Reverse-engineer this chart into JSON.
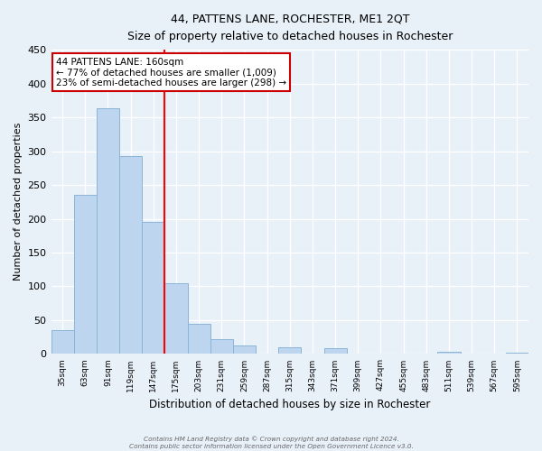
{
  "title": "44, PATTENS LANE, ROCHESTER, ME1 2QT",
  "subtitle": "Size of property relative to detached houses in Rochester",
  "xlabel": "Distribution of detached houses by size in Rochester",
  "ylabel": "Number of detached properties",
  "bar_color": "#bdd5ee",
  "bar_edge_color": "#8ab4d8",
  "background_color": "#e8f0f8",
  "grid_color": "#ffffff",
  "categories": [
    "35sqm",
    "63sqm",
    "91sqm",
    "119sqm",
    "147sqm",
    "175sqm",
    "203sqm",
    "231sqm",
    "259sqm",
    "287sqm",
    "315sqm",
    "343sqm",
    "371sqm",
    "399sqm",
    "427sqm",
    "455sqm",
    "483sqm",
    "511sqm",
    "539sqm",
    "567sqm",
    "595sqm"
  ],
  "values": [
    35,
    235,
    363,
    293,
    195,
    104,
    44,
    22,
    13,
    0,
    10,
    0,
    9,
    0,
    0,
    0,
    0,
    3,
    0,
    0,
    2
  ],
  "ylim": [
    0,
    450
  ],
  "yticks": [
    0,
    50,
    100,
    150,
    200,
    250,
    300,
    350,
    400,
    450
  ],
  "property_line_x": 4.5,
  "annotation_title": "44 PATTENS LANE: 160sqm",
  "annotation_line1": "← 77% of detached houses are smaller (1,009)",
  "annotation_line2": "23% of semi-detached houses are larger (298) →",
  "annotation_box_color": "#ffffff",
  "annotation_box_edge_color": "#cc0000",
  "footer_line1": "Contains HM Land Registry data © Crown copyright and database right 2024.",
  "footer_line2": "Contains public sector information licensed under the Open Government Licence v3.0."
}
